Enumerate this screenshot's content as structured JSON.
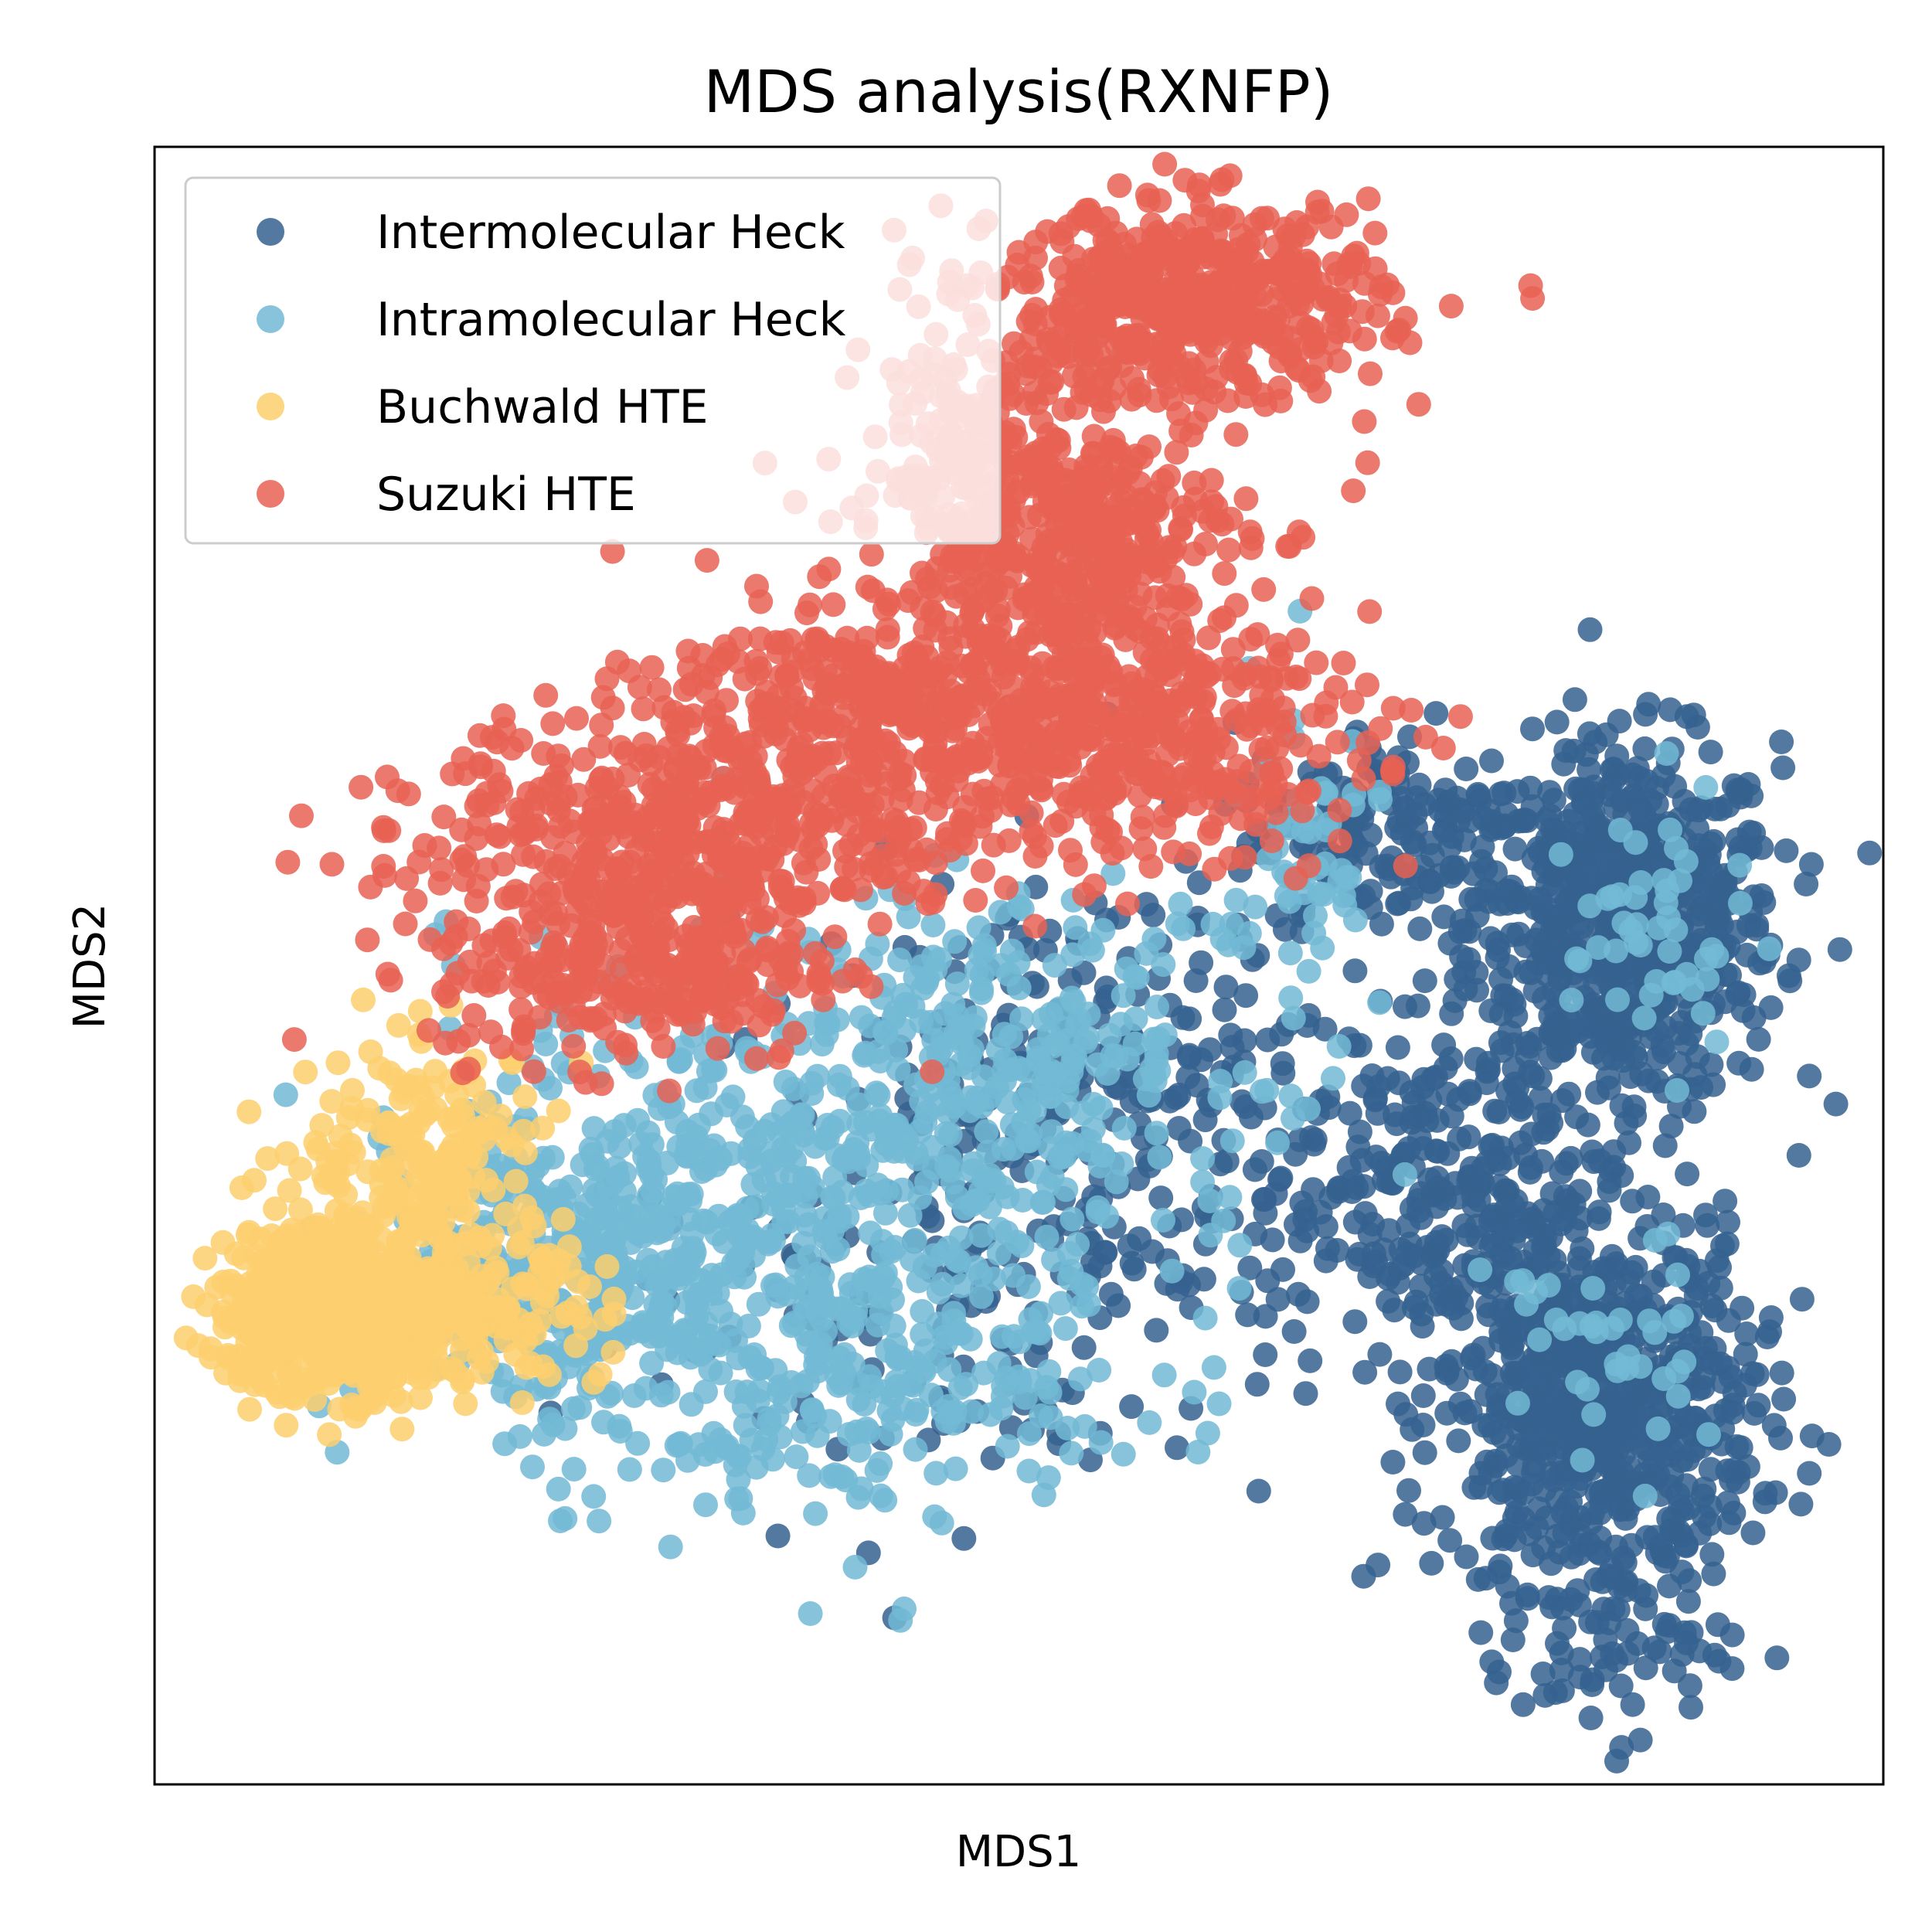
{
  "chart_data": {
    "type": "scatter",
    "title": "MDS analysis(RXNFP)",
    "xlabel": "MDS1",
    "ylabel": "MDS2",
    "xlim": [
      0,
      100
    ],
    "ylim": [
      0,
      100
    ],
    "ticks_shown": false,
    "grid": false,
    "legend_position": "upper-left",
    "series": [
      {
        "name": "Intermolecular Heck",
        "color": "#35618f",
        "clusters": [
          {
            "cx": 85.0,
            "cy": 52.5,
            "sx": 4.5,
            "sy": 5.5,
            "n": 700
          },
          {
            "cx": 83.5,
            "cy": 23.0,
            "sx": 4.5,
            "sy": 5.5,
            "n": 700
          },
          {
            "cx": 74.0,
            "cy": 36.0,
            "sx": 5.5,
            "sy": 4.5,
            "n": 260
          },
          {
            "cx": 72.0,
            "cy": 58.0,
            "sx": 5.0,
            "sy": 3.5,
            "n": 160
          },
          {
            "cx": 55.0,
            "cy": 43.0,
            "sx": 9.0,
            "sy": 6.5,
            "n": 260
          },
          {
            "cx": 84.0,
            "cy": 9.0,
            "sx": 3.5,
            "sy": 3.0,
            "n": 70
          },
          {
            "cx": 45.0,
            "cy": 28.0,
            "sx": 11.0,
            "sy": 6.0,
            "n": 120
          }
        ]
      },
      {
        "name": "Intramolecular Heck",
        "color": "#72bad5",
        "clusters": [
          {
            "cx": 37.0,
            "cy": 35.0,
            "sx": 10.0,
            "sy": 8.0,
            "n": 620
          },
          {
            "cx": 50.0,
            "cy": 45.0,
            "sx": 7.0,
            "sy": 4.5,
            "n": 200
          },
          {
            "cx": 24.0,
            "cy": 31.0,
            "sx": 6.0,
            "sy": 4.0,
            "n": 260
          },
          {
            "cx": 66.0,
            "cy": 56.0,
            "sx": 2.5,
            "sy": 6.0,
            "n": 60
          },
          {
            "cx": 87.0,
            "cy": 52.0,
            "sx": 2.5,
            "sy": 4.0,
            "n": 50
          },
          {
            "cx": 83.0,
            "cy": 26.0,
            "sx": 3.0,
            "sy": 4.0,
            "n": 40
          },
          {
            "cx": 41.0,
            "cy": 22.0,
            "sx": 8.0,
            "sy": 2.5,
            "n": 120
          }
        ]
      },
      {
        "name": "Buchwald HTE",
        "color": "#fdcf6f",
        "clusters": [
          {
            "cx": 9.5,
            "cy": 29.0,
            "sx": 3.0,
            "sy": 2.6,
            "n": 520
          },
          {
            "cx": 16.0,
            "cy": 29.0,
            "sx": 5.0,
            "sy": 2.2,
            "n": 260
          },
          {
            "cx": 16.0,
            "cy": 38.0,
            "sx": 3.5,
            "sy": 3.5,
            "n": 200
          }
        ]
      },
      {
        "name": "Suzuki HTE",
        "color": "#e86254",
        "clusters": [
          {
            "cx": 60.0,
            "cy": 90.5,
            "sx": 5.5,
            "sy": 3.0,
            "n": 520
          },
          {
            "cx": 52.0,
            "cy": 76.5,
            "sx": 5.5,
            "sy": 3.5,
            "n": 420
          },
          {
            "cx": 43.0,
            "cy": 67.0,
            "sx": 7.0,
            "sy": 2.6,
            "n": 260
          },
          {
            "cx": 55.0,
            "cy": 64.0,
            "sx": 7.5,
            "sy": 3.5,
            "n": 460
          },
          {
            "cx": 32.0,
            "cy": 58.5,
            "sx": 8.0,
            "sy": 3.5,
            "n": 520
          },
          {
            "cx": 28.0,
            "cy": 50.0,
            "sx": 6.0,
            "sy": 3.0,
            "n": 300
          },
          {
            "cx": 47.0,
            "cy": 84.0,
            "sx": 3.0,
            "sy": 5.0,
            "n": 120
          }
        ]
      }
    ]
  }
}
